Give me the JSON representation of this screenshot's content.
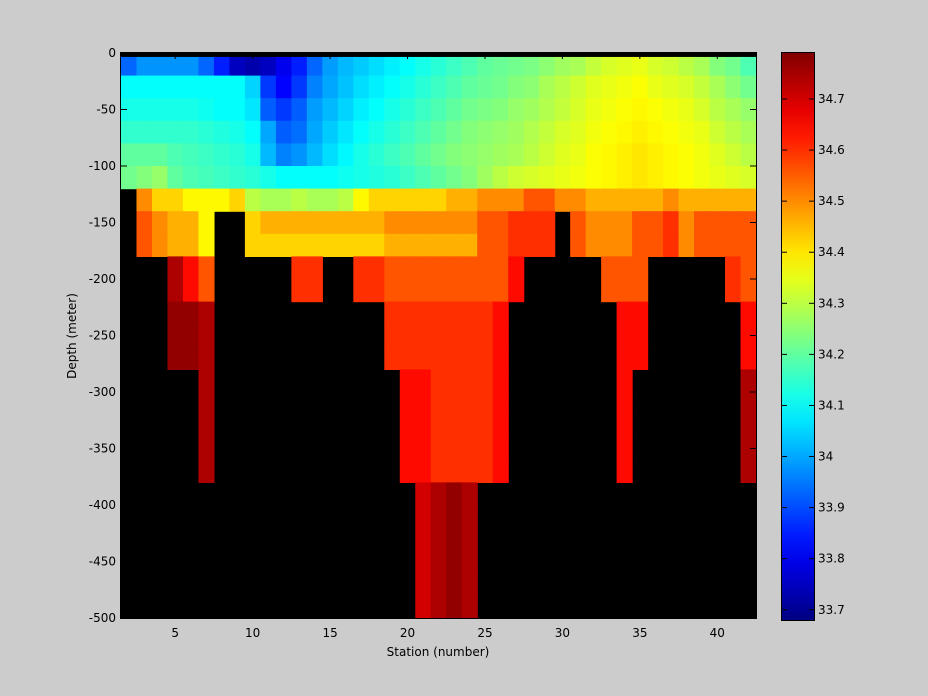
{
  "chart_data": {
    "type": "heatmap",
    "title": "",
    "xlabel": "Station (number)",
    "ylabel": "Depth (meter)",
    "xlim": [
      1.5,
      42.5
    ],
    "ylim": [
      -500,
      0
    ],
    "x_ticks": [
      5,
      10,
      15,
      20,
      25,
      30,
      35,
      40
    ],
    "y_ticks": [
      0,
      -50,
      -100,
      -150,
      -200,
      -250,
      -300,
      -350,
      -400,
      -450,
      -500
    ],
    "x_tick_labels": [
      "5",
      "10",
      "15",
      "20",
      "25",
      "30",
      "35",
      "40"
    ],
    "y_tick_labels": [
      "0",
      "-50",
      "-100",
      "-150",
      "-200",
      "-250",
      "-300",
      "-350",
      "-400",
      "-450",
      "-500"
    ],
    "colorbar": {
      "range": [
        33.68,
        34.79
      ],
      "ticks": [
        33.7,
        33.8,
        33.9,
        34,
        34.1,
        34.2,
        34.3,
        34.4,
        34.5,
        34.6,
        34.7
      ],
      "tick_labels": [
        "33.7",
        "33.8",
        "33.9",
        "34",
        "34.1",
        "34.2",
        "34.3",
        "34.4",
        "34.5",
        "34.6",
        "34.7"
      ],
      "colormap": "jet"
    },
    "background_color": "#000000",
    "stations": [
      2,
      3,
      4,
      5,
      6,
      7,
      8,
      9,
      10,
      11,
      12,
      13,
      14,
      15,
      16,
      17,
      18,
      19,
      20,
      21,
      22,
      23,
      24,
      25,
      26,
      27,
      28,
      29,
      30,
      31,
      32,
      33,
      34,
      35,
      36,
      37,
      38,
      39,
      40,
      41,
      42
    ],
    "depths": [
      -10,
      -30,
      -50,
      -70,
      -90,
      -110,
      -130,
      -150,
      -170,
      -190,
      -210,
      -230,
      -250,
      -270,
      -290,
      -310,
      -330,
      -350,
      -370,
      -390,
      -410,
      -430,
      -450,
      -470,
      -490
    ],
    "shallow_rows": [
      [
        33.93,
        33.98,
        33.98,
        33.98,
        33.98,
        33.93,
        33.85,
        33.75,
        33.73,
        33.75,
        33.8,
        33.85,
        33.93,
        33.99,
        34.02,
        34.04,
        34.06,
        34.08,
        34.1,
        34.12,
        34.14,
        34.16,
        34.18,
        34.2,
        34.21,
        34.22,
        34.23,
        34.25,
        34.27,
        34.28,
        34.31,
        34.33,
        34.34,
        34.35,
        34.33,
        34.32,
        34.3,
        34.28,
        34.24,
        34.22,
        34.18
      ],
      [
        34.1,
        34.1,
        34.1,
        34.1,
        34.1,
        34.1,
        34.1,
        34.1,
        34.05,
        33.88,
        33.82,
        33.88,
        33.96,
        34.0,
        34.03,
        34.06,
        34.08,
        34.1,
        34.12,
        34.14,
        34.16,
        34.18,
        34.2,
        34.21,
        34.22,
        34.24,
        34.25,
        34.28,
        34.3,
        34.32,
        34.34,
        34.35,
        34.36,
        34.37,
        34.35,
        34.34,
        34.33,
        34.31,
        34.28,
        34.25,
        34.22
      ],
      [
        34.12,
        34.12,
        34.12,
        34.12,
        34.12,
        34.11,
        34.1,
        34.1,
        34.07,
        33.92,
        33.88,
        33.92,
        33.99,
        34.02,
        34.05,
        34.08,
        34.1,
        34.12,
        34.14,
        34.16,
        34.18,
        34.2,
        34.22,
        34.23,
        34.24,
        34.26,
        34.27,
        34.29,
        34.31,
        34.33,
        34.35,
        34.36,
        34.37,
        34.38,
        34.37,
        34.36,
        34.35,
        34.33,
        34.3,
        34.28,
        34.26
      ],
      [
        34.15,
        34.15,
        34.15,
        34.15,
        34.15,
        34.14,
        34.13,
        34.12,
        34.1,
        34.0,
        33.92,
        33.94,
        34.0,
        34.04,
        34.07,
        34.1,
        34.12,
        34.14,
        34.16,
        34.18,
        34.2,
        34.22,
        34.24,
        34.25,
        34.26,
        34.27,
        34.29,
        34.31,
        34.33,
        34.34,
        34.36,
        34.37,
        34.38,
        34.39,
        34.38,
        34.37,
        34.36,
        34.35,
        34.32,
        34.3,
        34.28
      ],
      [
        34.2,
        34.2,
        34.2,
        34.18,
        34.17,
        34.16,
        34.15,
        34.14,
        34.12,
        34.02,
        33.96,
        33.98,
        34.02,
        34.06,
        34.09,
        34.12,
        34.14,
        34.16,
        34.18,
        34.2,
        34.22,
        34.24,
        34.25,
        34.26,
        34.27,
        34.28,
        34.3,
        34.32,
        34.34,
        34.35,
        34.37,
        34.38,
        34.39,
        34.4,
        34.39,
        34.38,
        34.37,
        34.36,
        34.34,
        34.32,
        34.3
      ],
      [
        34.22,
        34.24,
        34.26,
        34.2,
        34.18,
        34.17,
        34.16,
        34.15,
        34.14,
        34.12,
        34.1,
        34.1,
        34.1,
        34.1,
        34.11,
        34.12,
        34.13,
        34.14,
        34.16,
        34.18,
        34.2,
        34.22,
        34.24,
        34.27,
        34.3,
        34.32,
        34.33,
        34.34,
        34.35,
        34.36,
        34.37,
        34.38,
        34.39,
        34.4,
        34.39,
        34.38,
        34.37,
        34.36,
        34.35,
        34.34,
        34.33
      ]
    ],
    "lower_colors": {
      "Y1": 34.38,
      "Y2": 34.42,
      "Y3": 34.46,
      "Y4": 34.5,
      "O1": 34.56,
      "O2": 34.6,
      "O3": 34.64,
      "R1": 34.7,
      "R2": 34.74,
      "R3": 34.77,
      "W1": 34.3,
      "W2": 34.28
    },
    "lower_rows": [
      [
        "X",
        "Y4",
        "Y2",
        "Y2",
        "Y1",
        "Y1",
        "Y1",
        "Y2",
        "W1",
        "W2",
        "W2",
        "W1",
        "W2",
        "W2",
        "W1",
        "Y1",
        "Y2",
        "Y2",
        "Y2",
        "Y2",
        "Y2",
        "Y3",
        "Y3",
        "Y4",
        "Y4",
        "Y4",
        "O1",
        "O1",
        "Y4",
        "Y4",
        "Y3",
        "Y3",
        "Y3",
        "Y3",
        "Y3",
        "Y4",
        "Y3",
        "Y3",
        "Y3",
        "Y3",
        "Y3"
      ],
      [
        "X",
        "O1",
        "Y4",
        "Y3",
        "Y3",
        "Y1",
        "X",
        "X",
        "Y2",
        "Y3",
        "Y3",
        "Y3",
        "Y3",
        "Y3",
        "Y3",
        "Y3",
        "Y3",
        "Y4",
        "Y4",
        "Y4",
        "Y4",
        "Y4",
        "Y4",
        "O1",
        "O1",
        "O2",
        "O2",
        "O2",
        "X",
        "O1",
        "Y4",
        "Y4",
        "Y4",
        "O1",
        "O1",
        "O2",
        "Y4",
        "O1",
        "O1",
        "O1",
        "O1"
      ],
      [
        "X",
        "O1",
        "Y4",
        "Y3",
        "Y3",
        "Y1",
        "X",
        "X",
        "Y2",
        "Y2",
        "Y2",
        "Y2",
        "Y2",
        "Y2",
        "Y2",
        "Y2",
        "Y2",
        "Y3",
        "Y3",
        "Y3",
        "Y3",
        "Y3",
        "Y3",
        "O1",
        "O1",
        "O2",
        "O2",
        "O2",
        "X",
        "O1",
        "Y4",
        "Y4",
        "Y4",
        "O1",
        "O1",
        "O2",
        "Y4",
        "O1",
        "O1",
        "O1",
        "O1"
      ],
      [
        "X",
        "X",
        "X",
        "R2",
        "O3",
        "O1",
        "X",
        "X",
        "X",
        "X",
        "X",
        "O2",
        "O2",
        "X",
        "X",
        "O2",
        "O2",
        "O1",
        "O1",
        "O1",
        "O1",
        "O1",
        "O1",
        "O1",
        "O1",
        "O3",
        "X",
        "X",
        "X",
        "X",
        "X",
        "O1",
        "O1",
        "O1",
        "X",
        "X",
        "X",
        "X",
        "X",
        "O2",
        "O1"
      ],
      [
        "X",
        "X",
        "X",
        "R2",
        "O3",
        "O1",
        "X",
        "X",
        "X",
        "X",
        "X",
        "O2",
        "O2",
        "X",
        "X",
        "O2",
        "O2",
        "O1",
        "O1",
        "O1",
        "O1",
        "O1",
        "O1",
        "O1",
        "O1",
        "O3",
        "X",
        "X",
        "X",
        "X",
        "X",
        "O1",
        "O1",
        "O1",
        "X",
        "X",
        "X",
        "X",
        "X",
        "O2",
        "O1"
      ],
      [
        "X",
        "X",
        "X",
        "R3",
        "R3",
        "R2",
        "X",
        "X",
        "X",
        "X",
        "X",
        "X",
        "X",
        "X",
        "X",
        "X",
        "X",
        "O2",
        "O2",
        "O2",
        "O2",
        "O2",
        "O2",
        "O2",
        "O3",
        "X",
        "X",
        "X",
        "X",
        "X",
        "X",
        "X",
        "O3",
        "O3",
        "X",
        "X",
        "X",
        "X",
        "X",
        "X",
        "O3"
      ],
      [
        "X",
        "X",
        "X",
        "R3",
        "R3",
        "R2",
        "X",
        "X",
        "X",
        "X",
        "X",
        "X",
        "X",
        "X",
        "X",
        "X",
        "X",
        "O2",
        "O2",
        "O2",
        "O2",
        "O2",
        "O2",
        "O2",
        "O3",
        "X",
        "X",
        "X",
        "X",
        "X",
        "X",
        "X",
        "O3",
        "O3",
        "X",
        "X",
        "X",
        "X",
        "X",
        "X",
        "O3"
      ],
      [
        "X",
        "X",
        "X",
        "R3",
        "R3",
        "R2",
        "X",
        "X",
        "X",
        "X",
        "X",
        "X",
        "X",
        "X",
        "X",
        "X",
        "X",
        "O2",
        "O2",
        "O2",
        "O2",
        "O2",
        "O2",
        "O2",
        "O3",
        "X",
        "X",
        "X",
        "X",
        "X",
        "X",
        "X",
        "O3",
        "O3",
        "X",
        "X",
        "X",
        "X",
        "X",
        "X",
        "O3"
      ],
      [
        "X",
        "X",
        "X",
        "X",
        "X",
        "R2",
        "X",
        "X",
        "X",
        "X",
        "X",
        "X",
        "X",
        "X",
        "X",
        "X",
        "X",
        "X",
        "O3",
        "O3",
        "O2",
        "O2",
        "O2",
        "O2",
        "O3",
        "X",
        "X",
        "X",
        "X",
        "X",
        "X",
        "X",
        "O3",
        "X",
        "X",
        "X",
        "X",
        "X",
        "X",
        "X",
        "R2"
      ],
      [
        "X",
        "X",
        "X",
        "X",
        "X",
        "R2",
        "X",
        "X",
        "X",
        "X",
        "X",
        "X",
        "X",
        "X",
        "X",
        "X",
        "X",
        "X",
        "O3",
        "O3",
        "O2",
        "O2",
        "O2",
        "O2",
        "O3",
        "X",
        "X",
        "X",
        "X",
        "X",
        "X",
        "X",
        "O3",
        "X",
        "X",
        "X",
        "X",
        "X",
        "X",
        "X",
        "R2"
      ],
      [
        "X",
        "X",
        "X",
        "X",
        "X",
        "R2",
        "X",
        "X",
        "X",
        "X",
        "X",
        "X",
        "X",
        "X",
        "X",
        "X",
        "X",
        "X",
        "O3",
        "O3",
        "O2",
        "O2",
        "O2",
        "O2",
        "O3",
        "X",
        "X",
        "X",
        "X",
        "X",
        "X",
        "X",
        "O3",
        "X",
        "X",
        "X",
        "X",
        "X",
        "X",
        "X",
        "R2"
      ],
      [
        "X",
        "X",
        "X",
        "X",
        "X",
        "R2",
        "X",
        "X",
        "X",
        "X",
        "X",
        "X",
        "X",
        "X",
        "X",
        "X",
        "X",
        "X",
        "O3",
        "O3",
        "O2",
        "O2",
        "O2",
        "O2",
        "O3",
        "X",
        "X",
        "X",
        "X",
        "X",
        "X",
        "X",
        "O3",
        "X",
        "X",
        "X",
        "X",
        "X",
        "X",
        "X",
        "R2"
      ],
      [
        "X",
        "X",
        "X",
        "X",
        "X",
        "R2",
        "X",
        "X",
        "X",
        "X",
        "X",
        "X",
        "X",
        "X",
        "X",
        "X",
        "X",
        "X",
        "O3",
        "O3",
        "O2",
        "O2",
        "O2",
        "O2",
        "O3",
        "X",
        "X",
        "X",
        "X",
        "X",
        "X",
        "X",
        "O3",
        "X",
        "X",
        "X",
        "X",
        "X",
        "X",
        "X",
        "R2"
      ],
      [
        "X",
        "X",
        "X",
        "X",
        "X",
        "X",
        "X",
        "X",
        "X",
        "X",
        "X",
        "X",
        "X",
        "X",
        "X",
        "X",
        "X",
        "X",
        "X",
        "R1",
        "R2",
        "R3",
        "R2",
        "X",
        "X",
        "X",
        "X",
        "X",
        "X",
        "X",
        "X",
        "X",
        "X",
        "X",
        "X",
        "X",
        "X",
        "X",
        "X",
        "X",
        "X"
      ],
      [
        "X",
        "X",
        "X",
        "X",
        "X",
        "X",
        "X",
        "X",
        "X",
        "X",
        "X",
        "X",
        "X",
        "X",
        "X",
        "X",
        "X",
        "X",
        "X",
        "R1",
        "R2",
        "R3",
        "R2",
        "X",
        "X",
        "X",
        "X",
        "X",
        "X",
        "X",
        "X",
        "X",
        "X",
        "X",
        "X",
        "X",
        "X",
        "X",
        "X",
        "X",
        "X"
      ],
      [
        "X",
        "X",
        "X",
        "X",
        "X",
        "X",
        "X",
        "X",
        "X",
        "X",
        "X",
        "X",
        "X",
        "X",
        "X",
        "X",
        "X",
        "X",
        "X",
        "R1",
        "R2",
        "R3",
        "R2",
        "X",
        "X",
        "X",
        "X",
        "X",
        "X",
        "X",
        "X",
        "X",
        "X",
        "X",
        "X",
        "X",
        "X",
        "X",
        "X",
        "X",
        "X"
      ],
      [
        "X",
        "X",
        "X",
        "X",
        "X",
        "X",
        "X",
        "X",
        "X",
        "X",
        "X",
        "X",
        "X",
        "X",
        "X",
        "X",
        "X",
        "X",
        "X",
        "R1",
        "R2",
        "R3",
        "R2",
        "X",
        "X",
        "X",
        "X",
        "X",
        "X",
        "X",
        "X",
        "X",
        "X",
        "X",
        "X",
        "X",
        "X",
        "X",
        "X",
        "X",
        "X"
      ],
      [
        "X",
        "X",
        "X",
        "X",
        "X",
        "X",
        "X",
        "X",
        "X",
        "X",
        "X",
        "X",
        "X",
        "X",
        "X",
        "X",
        "X",
        "X",
        "X",
        "R1",
        "R2",
        "R3",
        "R2",
        "X",
        "X",
        "X",
        "X",
        "X",
        "X",
        "X",
        "X",
        "X",
        "X",
        "X",
        "X",
        "X",
        "X",
        "X",
        "X",
        "X",
        "X"
      ],
      [
        "X",
        "X",
        "X",
        "X",
        "X",
        "X",
        "X",
        "X",
        "X",
        "X",
        "X",
        "X",
        "X",
        "X",
        "X",
        "X",
        "X",
        "X",
        "X",
        "R1",
        "R2",
        "R3",
        "R2",
        "X",
        "X",
        "X",
        "X",
        "X",
        "X",
        "X",
        "X",
        "X",
        "X",
        "X",
        "X",
        "X",
        "X",
        "X",
        "X",
        "X",
        "X"
      ]
    ]
  }
}
